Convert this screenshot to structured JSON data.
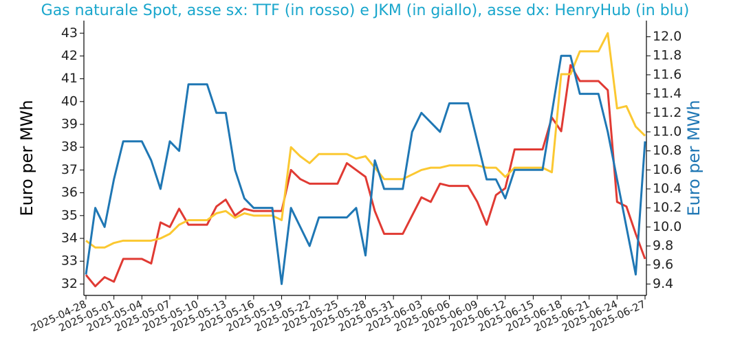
{
  "chart_data": {
    "type": "line",
    "title": "Gas naturale Spot, asse sx: TTF (in rosso) e JKM (in giallo), asse dx: HenryHub (in blu)",
    "ylabel": "Euro per MWh",
    "y2label": "Euro per MWh",
    "x": [
      "2025-04-28",
      "2025-04-29",
      "2025-04-30",
      "2025-05-01",
      "2025-05-02",
      "2025-05-03",
      "2025-05-04",
      "2025-05-05",
      "2025-05-06",
      "2025-05-07",
      "2025-05-08",
      "2025-05-09",
      "2025-05-10",
      "2025-05-11",
      "2025-05-12",
      "2025-05-13",
      "2025-05-14",
      "2025-05-15",
      "2025-05-16",
      "2025-05-17",
      "2025-05-18",
      "2025-05-19",
      "2025-05-20",
      "2025-05-21",
      "2025-05-22",
      "2025-05-23",
      "2025-05-24",
      "2025-05-25",
      "2025-05-26",
      "2025-05-27",
      "2025-05-28",
      "2025-05-29",
      "2025-05-30",
      "2025-05-31",
      "2025-06-01",
      "2025-06-02",
      "2025-06-03",
      "2025-06-04",
      "2025-06-05",
      "2025-06-06",
      "2025-06-07",
      "2025-06-08",
      "2025-06-09",
      "2025-06-10",
      "2025-06-11",
      "2025-06-12",
      "2025-06-13",
      "2025-06-14",
      "2025-06-15",
      "2025-06-16",
      "2025-06-17",
      "2025-06-18",
      "2025-06-19",
      "2025-06-20",
      "2025-06-21",
      "2025-06-22",
      "2025-06-23",
      "2025-06-24",
      "2025-06-25",
      "2025-06-26",
      "2025-06-27"
    ],
    "series": [
      {
        "name": "TTF",
        "color": "#e03a33",
        "axis": "y",
        "values": [
          32.4,
          31.9,
          32.3,
          32.1,
          33.1,
          33.1,
          33.1,
          32.9,
          34.7,
          34.5,
          35.3,
          34.6,
          34.6,
          34.6,
          35.4,
          35.7,
          35.0,
          35.3,
          35.2,
          35.2,
          35.2,
          35.2,
          37.0,
          36.6,
          36.4,
          36.4,
          36.4,
          36.4,
          37.3,
          37.0,
          36.7,
          35.2,
          34.2,
          34.2,
          34.2,
          35.0,
          35.8,
          35.6,
          36.4,
          36.3,
          36.3,
          36.3,
          35.6,
          34.6,
          35.9,
          36.2,
          37.9,
          37.9,
          37.9,
          37.9,
          39.3,
          38.7,
          41.6,
          40.9,
          40.9,
          40.9,
          40.5,
          35.6,
          35.4,
          34.2,
          33.1
        ]
      },
      {
        "name": "JKM",
        "color": "#fbc831",
        "axis": "y",
        "values": [
          33.9,
          33.6,
          33.6,
          33.8,
          33.9,
          33.9,
          33.9,
          33.9,
          34.0,
          34.2,
          34.6,
          34.8,
          34.8,
          34.8,
          35.1,
          35.2,
          34.9,
          35.1,
          35.0,
          35.0,
          35.0,
          34.8,
          38.0,
          37.6,
          37.3,
          37.7,
          37.7,
          37.7,
          37.7,
          37.5,
          37.6,
          37.1,
          36.6,
          36.6,
          36.6,
          36.8,
          37.0,
          37.1,
          37.1,
          37.2,
          37.2,
          37.2,
          37.2,
          37.1,
          37.1,
          36.7,
          37.1,
          37.1,
          37.1,
          37.1,
          36.9,
          41.2,
          41.2,
          42.2,
          42.2,
          42.2,
          43.0,
          39.7,
          39.8,
          38.9,
          38.5
        ]
      },
      {
        "name": "HenryHub",
        "color": "#1f77b4",
        "axis": "y2",
        "values": [
          9.5,
          10.2,
          10.0,
          10.5,
          10.9,
          10.9,
          10.9,
          10.7,
          10.4,
          10.9,
          10.8,
          11.5,
          11.5,
          11.5,
          11.2,
          11.2,
          10.6,
          10.3,
          10.2,
          10.2,
          10.2,
          9.4,
          10.2,
          10.0,
          9.8,
          10.1,
          10.1,
          10.1,
          10.1,
          10.2,
          9.7,
          10.7,
          10.4,
          10.4,
          10.4,
          11.0,
          11.2,
          11.1,
          11.0,
          11.3,
          11.3,
          11.3,
          10.9,
          10.5,
          10.5,
          10.3,
          10.6,
          10.6,
          10.6,
          10.6,
          11.2,
          11.8,
          11.8,
          11.4,
          11.4,
          11.4,
          11.0,
          10.5,
          10.0,
          9.5,
          10.9
        ]
      }
    ],
    "xticks": [
      "2025-04-28",
      "2025-05-01",
      "2025-05-04",
      "2025-05-07",
      "2025-05-10",
      "2025-05-13",
      "2025-05-16",
      "2025-05-19",
      "2025-05-22",
      "2025-05-25",
      "2025-05-28",
      "2025-05-31",
      "2025-06-03",
      "2025-06-06",
      "2025-06-09",
      "2025-06-12",
      "2025-06-15",
      "2025-06-18",
      "2025-06-21",
      "2025-06-24",
      "2025-06-27"
    ],
    "ylim": [
      31.5,
      43.55
    ],
    "yticks": [
      32,
      33,
      34,
      35,
      36,
      37,
      38,
      39,
      40,
      41,
      42,
      43
    ],
    "y2lim": [
      9.28,
      12.17
    ],
    "y2ticks": [
      9.4,
      9.6,
      9.8,
      {
        "value": 10,
        "label": "10.0"
      },
      10.2,
      10.4,
      10.6,
      10.8,
      {
        "value": 11,
        "label": "11.0"
      },
      11.2,
      11.4,
      11.6,
      11.8,
      {
        "value": 12,
        "label": "12.0"
      }
    ],
    "y2color": "#1f77b4",
    "grid": false
  }
}
